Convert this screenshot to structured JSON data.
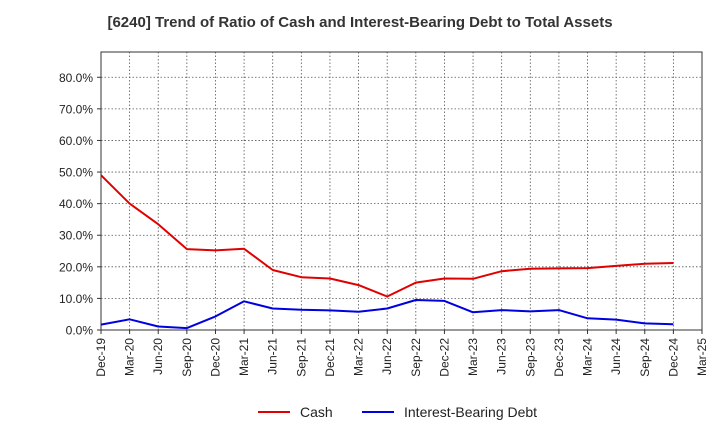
{
  "chart_data": {
    "type": "line",
    "title": "[6240]  Trend of Ratio of Cash and Interest-Bearing Debt to Total Assets",
    "xlabel": "",
    "ylabel": "",
    "ylim": [
      0,
      0.88
    ],
    "y_ticks": [
      "0.0%",
      "10.0%",
      "20.0%",
      "30.0%",
      "40.0%",
      "50.0%",
      "60.0%",
      "70.0%",
      "80.0%"
    ],
    "categories": [
      "Dec-19",
      "Mar-20",
      "Jun-20",
      "Sep-20",
      "Dec-20",
      "Mar-21",
      "Jun-21",
      "Sep-21",
      "Dec-21",
      "Mar-22",
      "Jun-22",
      "Sep-22",
      "Dec-22",
      "Mar-23",
      "Jun-23",
      "Sep-23",
      "Dec-23",
      "Mar-24",
      "Jun-24",
      "Sep-24",
      "Dec-24",
      "Mar-25"
    ],
    "grid": true,
    "legend_position": "bottom",
    "series": [
      {
        "name": "Cash",
        "color": "#e00000",
        "values": [
          0.49,
          0.4,
          0.335,
          0.256,
          0.252,
          0.257,
          0.19,
          0.167,
          0.163,
          0.142,
          0.106,
          0.15,
          0.163,
          0.162,
          0.186,
          0.194,
          0.195,
          0.196,
          0.203,
          0.21,
          0.212,
          null
        ]
      },
      {
        "name": "Interest-Bearing Debt",
        "color": "#0000e0",
        "values": [
          0.017,
          0.034,
          0.011,
          0.006,
          0.043,
          0.091,
          0.068,
          0.064,
          0.062,
          0.058,
          0.068,
          0.095,
          0.092,
          0.056,
          0.063,
          0.059,
          0.063,
          0.037,
          0.033,
          0.021,
          0.018,
          null
        ]
      }
    ]
  }
}
